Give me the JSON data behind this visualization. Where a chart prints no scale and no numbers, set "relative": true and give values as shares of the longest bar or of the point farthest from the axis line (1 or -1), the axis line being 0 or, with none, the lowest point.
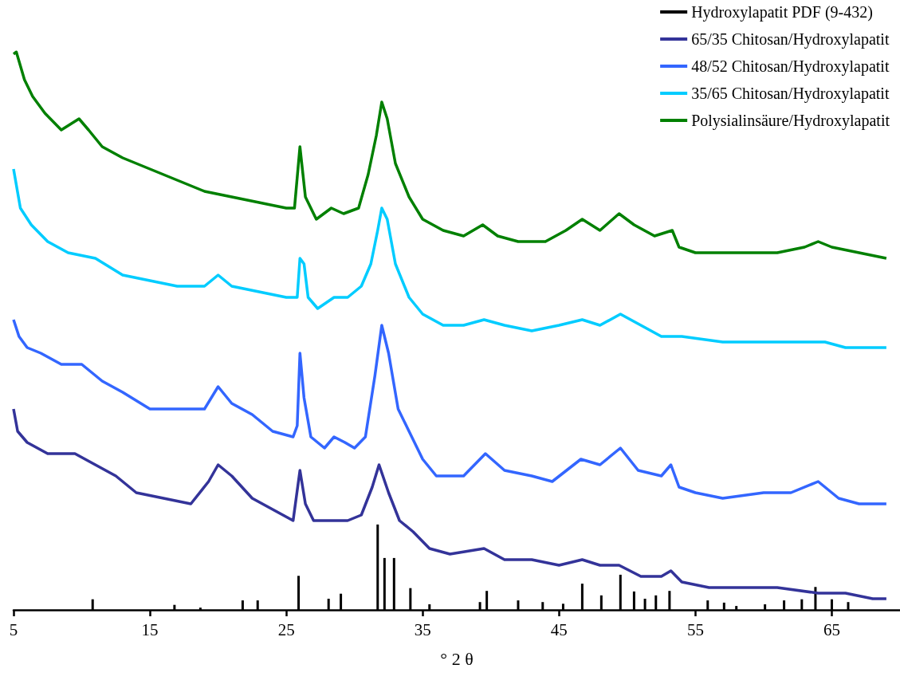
{
  "chart_data": {
    "type": "line",
    "relative": true,
    "xlabel": "° 2 θ",
    "xlim": [
      5,
      70
    ],
    "xticks": [
      5,
      15,
      25,
      35,
      45,
      55,
      65
    ],
    "legend": "top right",
    "grid": false,
    "series": [
      {
        "name": "Hydroxylapatit PDF (9-432)",
        "type": "bar",
        "color": "#000000",
        "x": [
          10.8,
          16.8,
          18.7,
          21.8,
          22.9,
          25.9,
          28.1,
          29.0,
          31.7,
          32.2,
          32.9,
          34.1,
          35.5,
          39.2,
          39.7,
          42.0,
          43.8,
          45.3,
          46.7,
          48.1,
          49.5,
          50.5,
          51.3,
          52.1,
          53.1,
          55.9,
          57.1,
          58.0,
          60.1,
          61.5,
          62.8,
          63.8,
          65.0,
          66.2
        ],
        "values": [
          0.019,
          0.009,
          0.004,
          0.017,
          0.017,
          0.061,
          0.02,
          0.029,
          0.153,
          0.093,
          0.093,
          0.039,
          0.01,
          0.014,
          0.034,
          0.017,
          0.014,
          0.011,
          0.047,
          0.026,
          0.063,
          0.033,
          0.02,
          0.026,
          0.034,
          0.017,
          0.013,
          0.007,
          0.01,
          0.017,
          0.019,
          0.041,
          0.019,
          0.014
        ]
      },
      {
        "name": "65/35 Chitosan/Hydroxylapatit",
        "color": "#333399",
        "x": [
          5,
          5.3,
          6,
          7.5,
          9.5,
          11,
          12.5,
          14,
          16,
          18,
          19.3,
          20,
          21,
          22.5,
          24,
          25.5,
          26,
          26.4,
          27,
          28.5,
          29.5,
          30.5,
          31.3,
          31.8,
          32.5,
          33.3,
          34.3,
          35.5,
          37,
          39.5,
          41,
          43,
          45,
          46.7,
          48,
          49.4,
          51,
          52.5,
          53.2,
          54,
          56,
          58,
          61,
          64,
          66,
          68,
          69
        ],
        "values": [
          0.36,
          0.32,
          0.3,
          0.28,
          0.28,
          0.26,
          0.24,
          0.21,
          0.2,
          0.19,
          0.23,
          0.26,
          0.24,
          0.2,
          0.18,
          0.16,
          0.25,
          0.19,
          0.16,
          0.16,
          0.16,
          0.17,
          0.22,
          0.26,
          0.21,
          0.16,
          0.14,
          0.11,
          0.1,
          0.11,
          0.09,
          0.09,
          0.08,
          0.09,
          0.08,
          0.08,
          0.06,
          0.06,
          0.07,
          0.05,
          0.04,
          0.04,
          0.04,
          0.03,
          0.03,
          0.02,
          0.02
        ]
      },
      {
        "name": "48/52 Chitosan/Hydroxylapatit",
        "color": "#3366ff",
        "x": [
          5,
          5.4,
          6,
          7,
          8.5,
          10,
          11.5,
          13,
          15,
          17,
          19,
          20,
          21,
          22.5,
          24,
          25.5,
          25.8,
          26,
          26.3,
          26.8,
          27.8,
          28.5,
          29.3,
          30,
          30.8,
          31.5,
          32,
          32.5,
          33.2,
          34,
          35,
          36,
          38,
          39.6,
          41,
          43,
          44.5,
          46.6,
          48,
          49.5,
          50.8,
          52.5,
          53.2,
          53.8,
          55,
          57,
          60,
          62,
          64,
          65.5,
          67,
          69
        ],
        "values": [
          0.52,
          0.49,
          0.47,
          0.46,
          0.44,
          0.44,
          0.41,
          0.39,
          0.36,
          0.36,
          0.36,
          0.4,
          0.37,
          0.35,
          0.32,
          0.31,
          0.33,
          0.46,
          0.38,
          0.31,
          0.29,
          0.31,
          0.3,
          0.29,
          0.31,
          0.42,
          0.51,
          0.46,
          0.36,
          0.32,
          0.27,
          0.24,
          0.24,
          0.28,
          0.25,
          0.24,
          0.23,
          0.27,
          0.26,
          0.29,
          0.25,
          0.24,
          0.26,
          0.22,
          0.21,
          0.2,
          0.21,
          0.21,
          0.23,
          0.2,
          0.19,
          0.19
        ]
      },
      {
        "name": "35/65 Chitosan/Hydroxylapatit",
        "color": "#00ccff",
        "x": [
          5,
          5.5,
          6.3,
          7.5,
          9,
          11,
          13,
          15,
          17,
          19,
          20,
          21,
          23,
          25,
          25.8,
          26,
          26.3,
          26.6,
          27.3,
          28.5,
          29.5,
          30.5,
          31.2,
          31.7,
          32,
          32.4,
          33,
          34,
          35,
          36.5,
          38,
          39.5,
          41,
          43,
          45,
          46.7,
          48,
          49.5,
          51,
          52.5,
          54,
          57,
          60,
          63,
          64.5,
          66,
          69
        ],
        "values": [
          0.79,
          0.72,
          0.69,
          0.66,
          0.64,
          0.63,
          0.6,
          0.59,
          0.58,
          0.58,
          0.6,
          0.58,
          0.57,
          0.56,
          0.56,
          0.63,
          0.62,
          0.56,
          0.54,
          0.56,
          0.56,
          0.58,
          0.62,
          0.68,
          0.72,
          0.7,
          0.62,
          0.56,
          0.53,
          0.51,
          0.51,
          0.52,
          0.51,
          0.5,
          0.51,
          0.52,
          0.51,
          0.53,
          0.51,
          0.49,
          0.49,
          0.48,
          0.48,
          0.48,
          0.48,
          0.47,
          0.47
        ]
      },
      {
        "name": "Polysialinsäure/Hydroxylapatit",
        "color": "#008000",
        "x": [
          5,
          5.2,
          5.8,
          6.4,
          7.3,
          8.5,
          9.8,
          10.5,
          11.5,
          13,
          15,
          17,
          19,
          21,
          23,
          25,
          25.6,
          26,
          26.4,
          27.2,
          28.3,
          29.2,
          30.3,
          31,
          31.6,
          32,
          32.4,
          33,
          34,
          35,
          36.5,
          38,
          39.4,
          40.5,
          42,
          44,
          45.5,
          46.7,
          48,
          49.4,
          50.5,
          52,
          53.3,
          53.8,
          55,
          58,
          61,
          63,
          64,
          65,
          67,
          69
        ],
        "values": [
          0.996,
          1.0,
          0.95,
          0.92,
          0.89,
          0.86,
          0.88,
          0.86,
          0.83,
          0.81,
          0.79,
          0.77,
          0.75,
          0.74,
          0.73,
          0.72,
          0.72,
          0.83,
          0.74,
          0.7,
          0.72,
          0.71,
          0.72,
          0.78,
          0.85,
          0.91,
          0.88,
          0.8,
          0.74,
          0.7,
          0.68,
          0.67,
          0.69,
          0.67,
          0.66,
          0.66,
          0.68,
          0.7,
          0.68,
          0.71,
          0.69,
          0.67,
          0.68,
          0.65,
          0.64,
          0.64,
          0.64,
          0.65,
          0.66,
          0.65,
          0.64,
          0.63
        ]
      }
    ]
  }
}
